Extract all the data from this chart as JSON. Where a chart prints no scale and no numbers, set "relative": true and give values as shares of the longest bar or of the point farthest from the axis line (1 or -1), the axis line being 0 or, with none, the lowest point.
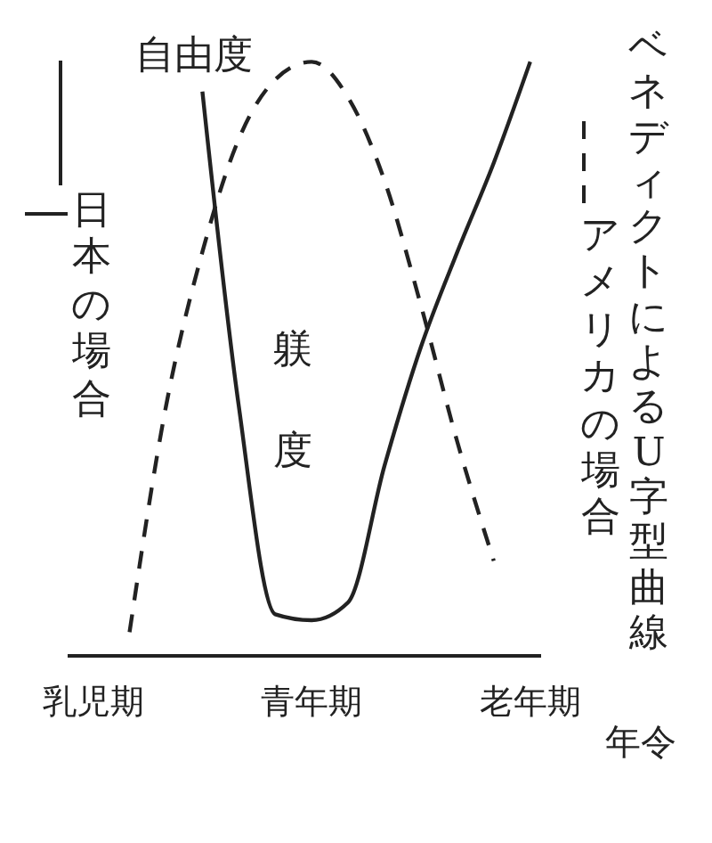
{
  "chart_data": {
    "type": "line",
    "relative": true,
    "title": "ベネディクトによるU字型曲線",
    "xlabel": "年令",
    "ylabel": "自由度",
    "annotations": [
      "躾度"
    ],
    "categories": [
      "乳児期",
      null,
      null,
      null,
      null,
      null,
      "青年期",
      null,
      null,
      null,
      null,
      null,
      "老年期"
    ],
    "series": [
      {
        "name": "日本の場合",
        "color": "#222222",
        "line_style": "solid",
        "values": [
          null,
          null,
          null,
          0.95,
          0.42,
          0.07,
          0.06,
          0.09,
          0.32,
          0.52,
          0.68,
          0.83,
          1.0
        ]
      },
      {
        "name": "アメリカの場合",
        "color": "#222222",
        "line_style": "dashed",
        "values": [
          null,
          0.04,
          0.42,
          0.68,
          0.87,
          0.97,
          1.0,
          0.94,
          0.8,
          0.59,
          0.36,
          0.16,
          null
        ]
      }
    ]
  }
}
